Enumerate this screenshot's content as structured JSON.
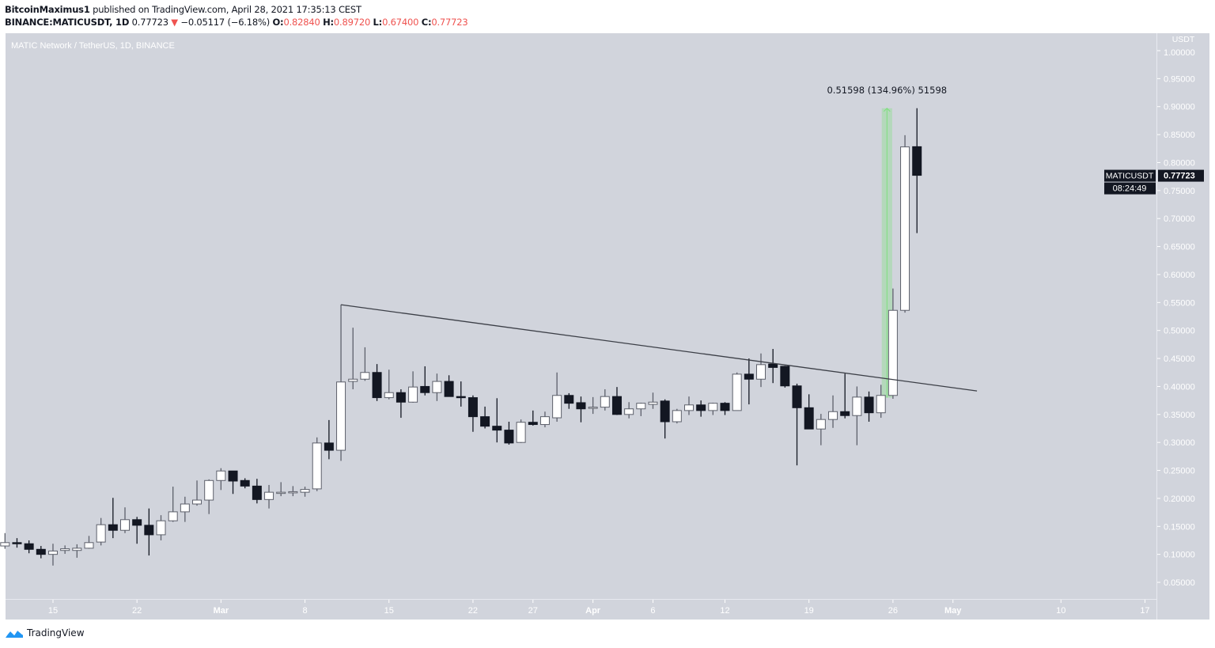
{
  "header": {
    "author": "BitcoinMaximus1",
    "published": "published on TradingView.com, April 28, 2021 17:35:13 CEST",
    "symbol": "BINANCE:MATICUSDT, 1D",
    "last": "0.77723",
    "change": "−0.05117 (−6.18%)",
    "o_label": "O:",
    "o": "0.82840",
    "h_label": "H:",
    "h": "0.89720",
    "l_label": "L:",
    "l": "0.67400",
    "c_label": "C:",
    "c": "0.77723",
    "down_color": "#ef5350"
  },
  "brand": {
    "name": "TradingView",
    "icon": "tradingview-logo-icon",
    "color": "#2196f3"
  },
  "chart_data": {
    "type": "candlestick",
    "title": "MATIC Network / TetherUS, 1D, BINANCE",
    "ylabel": "USDT",
    "ylim": [
      0.02,
      1.03
    ],
    "xlim": [
      "2021-02-11",
      "2021-05-20"
    ],
    "grid": false,
    "colors": {
      "background": "#d1d4dc",
      "up": "#ffffff",
      "down": "#131722",
      "axis_text": "#ffffff",
      "measure": "#7ee07e"
    },
    "yticks": [
      "1.00000",
      "0.95000",
      "0.90000",
      "0.85000",
      "0.80000",
      "0.75000",
      "0.70000",
      "0.65000",
      "0.60000",
      "0.55000",
      "0.50000",
      "0.45000",
      "0.40000",
      "0.35000",
      "0.30000",
      "0.25000",
      "0.20000",
      "0.15000",
      "0.10000",
      "0.05000"
    ],
    "xticks": [
      {
        "date": "2021-02-15",
        "label": "15"
      },
      {
        "date": "2021-02-22",
        "label": "22"
      },
      {
        "date": "2021-03-01",
        "label": "Mar"
      },
      {
        "date": "2021-03-08",
        "label": "8"
      },
      {
        "date": "2021-03-15",
        "label": "15"
      },
      {
        "date": "2021-03-22",
        "label": "22"
      },
      {
        "date": "2021-03-27",
        "label": "27"
      },
      {
        "date": "2021-04-01",
        "label": "Apr"
      },
      {
        "date": "2021-04-06",
        "label": "6"
      },
      {
        "date": "2021-04-12",
        "label": "12"
      },
      {
        "date": "2021-04-19",
        "label": "19"
      },
      {
        "date": "2021-04-26",
        "label": "26"
      },
      {
        "date": "2021-05-01",
        "label": "May"
      },
      {
        "date": "2021-05-10",
        "label": "10"
      },
      {
        "date": "2021-05-17",
        "label": "17"
      }
    ],
    "candles_columns": [
      "date",
      "open",
      "high",
      "low",
      "close"
    ],
    "candles": [
      [
        "2021-02-11",
        0.115,
        0.138,
        0.11,
        0.121
      ],
      [
        "2021-02-12",
        0.121,
        0.129,
        0.112,
        0.119
      ],
      [
        "2021-02-13",
        0.119,
        0.125,
        0.102,
        0.109
      ],
      [
        "2021-02-14",
        0.109,
        0.115,
        0.093,
        0.1
      ],
      [
        "2021-02-15",
        0.1,
        0.119,
        0.08,
        0.106
      ],
      [
        "2021-02-16",
        0.107,
        0.116,
        0.101,
        0.11
      ],
      [
        "2021-02-17",
        0.107,
        0.118,
        0.094,
        0.111
      ],
      [
        "2021-02-18",
        0.111,
        0.133,
        0.11,
        0.121
      ],
      [
        "2021-02-19",
        0.122,
        0.165,
        0.116,
        0.153
      ],
      [
        "2021-02-20",
        0.153,
        0.201,
        0.129,
        0.143
      ],
      [
        "2021-02-21",
        0.143,
        0.184,
        0.138,
        0.162
      ],
      [
        "2021-02-22",
        0.162,
        0.167,
        0.119,
        0.152
      ],
      [
        "2021-02-23",
        0.152,
        0.182,
        0.098,
        0.135
      ],
      [
        "2021-02-24",
        0.135,
        0.17,
        0.125,
        0.16
      ],
      [
        "2021-02-25",
        0.16,
        0.221,
        0.158,
        0.176
      ],
      [
        "2021-02-26",
        0.176,
        0.203,
        0.158,
        0.19
      ],
      [
        "2021-02-27",
        0.19,
        0.232,
        0.187,
        0.197
      ],
      [
        "2021-02-28",
        0.197,
        0.234,
        0.172,
        0.232
      ],
      [
        "2021-03-01",
        0.232,
        0.254,
        0.215,
        0.249
      ],
      [
        "2021-03-02",
        0.249,
        0.249,
        0.208,
        0.231
      ],
      [
        "2021-03-03",
        0.232,
        0.236,
        0.218,
        0.222
      ],
      [
        "2021-03-04",
        0.222,
        0.235,
        0.191,
        0.198
      ],
      [
        "2021-03-05",
        0.198,
        0.224,
        0.182,
        0.211
      ],
      [
        "2021-03-06",
        0.211,
        0.229,
        0.204,
        0.211
      ],
      [
        "2021-03-07",
        0.211,
        0.222,
        0.204,
        0.212
      ],
      [
        "2021-03-08",
        0.211,
        0.221,
        0.203,
        0.216
      ],
      [
        "2021-03-09",
        0.217,
        0.309,
        0.213,
        0.299
      ],
      [
        "2021-03-10",
        0.299,
        0.34,
        0.27,
        0.286
      ],
      [
        "2021-03-11",
        0.286,
        0.546,
        0.267,
        0.408
      ],
      [
        "2021-03-12",
        0.409,
        0.505,
        0.395,
        0.413
      ],
      [
        "2021-03-13",
        0.413,
        0.47,
        0.41,
        0.425
      ],
      [
        "2021-03-14",
        0.425,
        0.44,
        0.374,
        0.38
      ],
      [
        "2021-03-15",
        0.38,
        0.43,
        0.377,
        0.389
      ],
      [
        "2021-03-16",
        0.389,
        0.395,
        0.344,
        0.372
      ],
      [
        "2021-03-17",
        0.372,
        0.427,
        0.371,
        0.399
      ],
      [
        "2021-03-18",
        0.4,
        0.436,
        0.384,
        0.389
      ],
      [
        "2021-03-19",
        0.389,
        0.423,
        0.374,
        0.409
      ],
      [
        "2021-03-20",
        0.409,
        0.42,
        0.382,
        0.382
      ],
      [
        "2021-03-21",
        0.382,
        0.409,
        0.364,
        0.38
      ],
      [
        "2021-03-22",
        0.38,
        0.384,
        0.319,
        0.346
      ],
      [
        "2021-03-23",
        0.346,
        0.364,
        0.325,
        0.329
      ],
      [
        "2021-03-24",
        0.329,
        0.379,
        0.3,
        0.322
      ],
      [
        "2021-03-25",
        0.322,
        0.337,
        0.296,
        0.299
      ],
      [
        "2021-03-26",
        0.3,
        0.341,
        0.299,
        0.336
      ],
      [
        "2021-03-27",
        0.336,
        0.357,
        0.33,
        0.332
      ],
      [
        "2021-03-28",
        0.332,
        0.355,
        0.327,
        0.346
      ],
      [
        "2021-03-29",
        0.344,
        0.425,
        0.337,
        0.384
      ],
      [
        "2021-03-30",
        0.384,
        0.388,
        0.36,
        0.37
      ],
      [
        "2021-03-31",
        0.371,
        0.382,
        0.336,
        0.36
      ],
      [
        "2021-04-01",
        0.361,
        0.381,
        0.351,
        0.363
      ],
      [
        "2021-04-02",
        0.363,
        0.395,
        0.357,
        0.382
      ],
      [
        "2021-04-03",
        0.382,
        0.399,
        0.349,
        0.35
      ],
      [
        "2021-04-04",
        0.35,
        0.372,
        0.343,
        0.36
      ],
      [
        "2021-04-05",
        0.36,
        0.371,
        0.347,
        0.37
      ],
      [
        "2021-04-06",
        0.368,
        0.389,
        0.36,
        0.372
      ],
      [
        "2021-04-07",
        0.374,
        0.377,
        0.307,
        0.337
      ],
      [
        "2021-04-08",
        0.337,
        0.36,
        0.334,
        0.357
      ],
      [
        "2021-04-09",
        0.357,
        0.382,
        0.349,
        0.367
      ],
      [
        "2021-04-10",
        0.367,
        0.375,
        0.346,
        0.357
      ],
      [
        "2021-04-11",
        0.357,
        0.371,
        0.349,
        0.37
      ],
      [
        "2021-04-12",
        0.37,
        0.372,
        0.349,
        0.357
      ],
      [
        "2021-04-13",
        0.357,
        0.425,
        0.357,
        0.422
      ],
      [
        "2021-04-14",
        0.422,
        0.45,
        0.368,
        0.413
      ],
      [
        "2021-04-15",
        0.413,
        0.459,
        0.399,
        0.439
      ],
      [
        "2021-04-16",
        0.44,
        0.467,
        0.406,
        0.434
      ],
      [
        "2021-04-17",
        0.436,
        0.437,
        0.398,
        0.401
      ],
      [
        "2021-04-18",
        0.401,
        0.405,
        0.259,
        0.362
      ],
      [
        "2021-04-19",
        0.362,
        0.386,
        0.324,
        0.324
      ],
      [
        "2021-04-20",
        0.324,
        0.351,
        0.295,
        0.341
      ],
      [
        "2021-04-21",
        0.341,
        0.384,
        0.326,
        0.355
      ],
      [
        "2021-04-22",
        0.355,
        0.423,
        0.343,
        0.348
      ],
      [
        "2021-04-23",
        0.348,
        0.4,
        0.295,
        0.381
      ],
      [
        "2021-04-24",
        0.381,
        0.391,
        0.337,
        0.353
      ],
      [
        "2021-04-25",
        0.353,
        0.403,
        0.344,
        0.384
      ],
      [
        "2021-04-26",
        0.384,
        0.575,
        0.378,
        0.536
      ],
      [
        "2021-04-27",
        0.536,
        0.849,
        0.532,
        0.828
      ],
      [
        "2021-04-28",
        0.8284,
        0.8972,
        0.674,
        0.77723
      ]
    ],
    "trendline": {
      "from": [
        "2021-03-11",
        0.546
      ],
      "to": [
        "2021-05-03",
        0.392
      ]
    },
    "measure": {
      "from": [
        "2021-04-25",
        0.38
      ],
      "to": [
        "2021-04-26",
        0.897
      ],
      "label": "0.51598 (134.96%) 51598"
    },
    "last_price": {
      "symbol": "MATICUSDT",
      "price": "0.77723",
      "value": 0.77723,
      "countdown": "08:24:49"
    }
  }
}
